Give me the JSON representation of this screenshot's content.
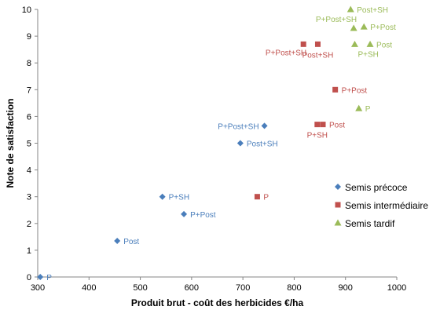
{
  "chart_data": {
    "type": "scatter",
    "xlabel": "Produit brut - coût des herbicides €/ha",
    "ylabel": "Note de satisfaction",
    "xlim": [
      300,
      1000
    ],
    "ylim": [
      0,
      10
    ],
    "xticks": [
      300,
      400,
      500,
      600,
      700,
      800,
      900,
      1000
    ],
    "yticks": [
      0,
      1,
      2,
      3,
      4,
      5,
      6,
      7,
      8,
      9,
      10
    ],
    "grid": false,
    "legend_position": "bottom-right",
    "series": [
      {
        "name": "Semis précoce",
        "marker": "diamond",
        "color": "#4a7ebb",
        "points": [
          {
            "label": "P",
            "x": 305,
            "y": 0,
            "anchor": "right"
          },
          {
            "label": "Post",
            "x": 455,
            "y": 1.35,
            "anchor": "right"
          },
          {
            "label": "P+SH",
            "x": 543,
            "y": 3,
            "anchor": "right"
          },
          {
            "label": "P+Post",
            "x": 585,
            "y": 2.35,
            "anchor": "right"
          },
          {
            "label": "Post+SH",
            "x": 695,
            "y": 5,
            "anchor": "right"
          },
          {
            "label": "P+Post+SH",
            "x": 742,
            "y": 5.65,
            "anchor": "left"
          }
        ]
      },
      {
        "name": "Semis intermédiaire",
        "marker": "square",
        "color": "#c0504d",
        "points": [
          {
            "label": "P",
            "x": 728,
            "y": 3,
            "anchor": "right"
          },
          {
            "label": "P+Post+SH",
            "x": 818,
            "y": 8.7,
            "anchor": "below-left"
          },
          {
            "label": "Post+SH",
            "x": 846,
            "y": 8.7,
            "anchor": "below"
          },
          {
            "label": "P+SH",
            "x": 845,
            "y": 5.7,
            "anchor": "below"
          },
          {
            "label": "Post",
            "x": 856,
            "y": 5.7,
            "anchor": "right"
          },
          {
            "label": "P+Post",
            "x": 880,
            "y": 7,
            "anchor": "right"
          }
        ]
      },
      {
        "name": "Semis tardif",
        "marker": "triangle",
        "color": "#9bbb59",
        "points": [
          {
            "label": "Post+SH",
            "x": 910,
            "y": 10,
            "anchor": "right"
          },
          {
            "label": "P+Post+SH",
            "x": 916,
            "y": 9.3,
            "anchor": "above-left"
          },
          {
            "label": "P+Post",
            "x": 936,
            "y": 9.35,
            "anchor": "right"
          },
          {
            "label": "P+SH",
            "x": 918,
            "y": 8.7,
            "anchor": "below-right"
          },
          {
            "label": "Post",
            "x": 948,
            "y": 8.7,
            "anchor": "right"
          },
          {
            "label": "P",
            "x": 926,
            "y": 6.3,
            "anchor": "right"
          }
        ]
      }
    ]
  }
}
